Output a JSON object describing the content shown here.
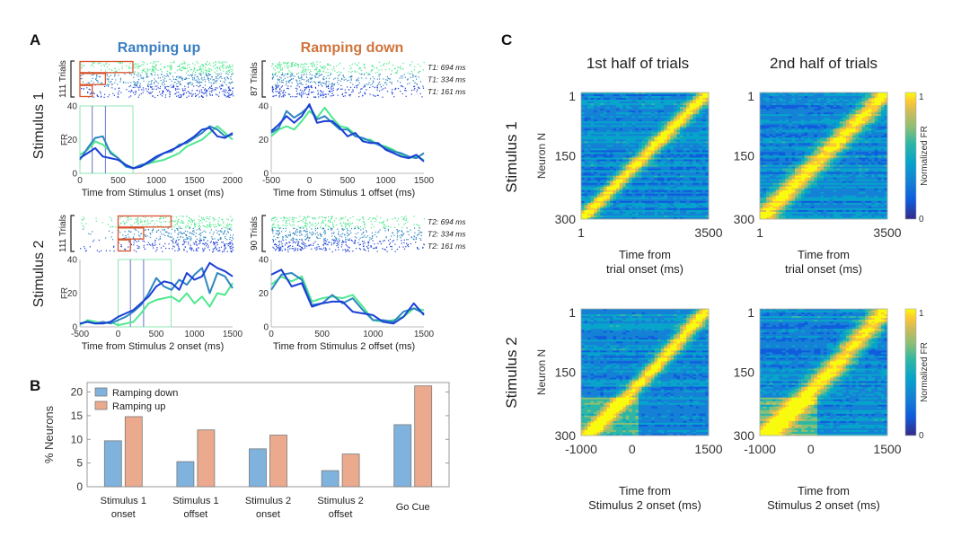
{
  "panels": {
    "A": {
      "letter": "A",
      "col_titles": [
        "Ramping up",
        "Ramping down"
      ],
      "col_title_colors": [
        "#3a7fc1",
        "#d0743c"
      ],
      "row_labels": [
        "Stimulus 1",
        "Stimulus 2"
      ],
      "fr_label": "FR",
      "series_colors": {
        "T694": "#4ee88f",
        "T334": "#2e86c1",
        "T161": "#1a3fd6"
      },
      "interval_box_color": "#d9522b",
      "subplots": [
        {
          "id": "s1-up",
          "trials_label": "111 Trials",
          "xlabel": "Time from  Stimulus 1 onset (ms)",
          "xlim": [
            0,
            2000
          ],
          "xticks": [
            0,
            500,
            1000,
            1500,
            2000
          ],
          "ylim": [
            0,
            40
          ],
          "yticks": [
            0,
            20,
            40
          ],
          "interval_markers": [
            161,
            334,
            694
          ],
          "boxes": true,
          "legend": []
        },
        {
          "id": "s1-down",
          "trials_label": "87 Trials",
          "xlabel": "Time from  Stimulus 1 offset (ms)",
          "xlim": [
            -500,
            1500
          ],
          "xticks": [
            -500,
            0,
            500,
            1000,
            1500
          ],
          "ylim": [
            0,
            40
          ],
          "yticks": [
            0,
            20,
            40
          ],
          "interval_markers": [],
          "boxes": false,
          "legend": [
            "T1: 694 ms",
            "T1: 334 ms",
            "T1: 161 ms"
          ]
        },
        {
          "id": "s2-up",
          "trials_label": "111 Trials",
          "xlabel": "Time from  Stimulus 2 onset (ms)",
          "xlim": [
            -500,
            1500
          ],
          "xticks": [
            -500,
            0,
            500,
            1000,
            1500
          ],
          "ylim": [
            0,
            40
          ],
          "yticks": [
            0,
            20,
            40
          ],
          "interval_markers": [
            161,
            334,
            694
          ],
          "boxes": true,
          "legend": []
        },
        {
          "id": "s2-down",
          "trials_label": "90 Trials",
          "xlabel": "Time from  Stimulus 2 offset (ms)",
          "xlim": [
            0,
            1500
          ],
          "xticks": [
            0,
            500,
            1000,
            1500
          ],
          "ylim": [
            0,
            40
          ],
          "yticks": [
            0,
            20,
            40
          ],
          "interval_markers": [],
          "boxes": false,
          "legend": [
            "T2: 694 ms",
            "T2: 334 ms",
            "T2: 161 ms"
          ]
        }
      ]
    },
    "B": {
      "letter": "B"
    },
    "C": {
      "letter": "C",
      "col_titles": [
        "1st half of trials",
        "2nd half of trials"
      ],
      "row_labels": [
        "Stimulus 1",
        "Stimulus 2"
      ],
      "ylabel": "Neuron N",
      "yticks": [
        "1",
        "150",
        "300"
      ],
      "colorbar_label": "Normalized FR",
      "colorbar_ticks": [
        "1",
        "0"
      ],
      "rows": [
        {
          "xticks": [
            "1",
            "3500"
          ],
          "xlabel_lines": [
            "Time from",
            "trial onset (ms)"
          ]
        },
        {
          "xticks": [
            "-1000",
            "0",
            "1500"
          ],
          "xlabel_lines": [
            "Time from",
            "Stimulus 2 onset (ms)"
          ]
        }
      ]
    }
  },
  "chart_data": [
    {
      "type": "line",
      "title": "A: Stimulus 1 – Ramping up (FR vs time from Stimulus 1 onset)",
      "xlabel": "Time from Stimulus 1 onset (ms)",
      "ylabel": "FR",
      "xlim": [
        0,
        2000
      ],
      "ylim": [
        0,
        40
      ],
      "x": [
        0,
        100,
        200,
        300,
        400,
        500,
        600,
        700,
        800,
        900,
        1000,
        1100,
        1200,
        1300,
        1400,
        1500,
        1600,
        1700,
        1800,
        1900,
        2000
      ],
      "series": [
        {
          "name": "T1: 694 ms",
          "values": [
            11,
            14,
            19,
            17,
            13,
            9,
            5,
            3,
            4,
            6,
            7,
            8,
            10,
            12,
            16,
            18,
            20,
            24,
            28,
            24,
            20
          ]
        },
        {
          "name": "T1: 334 ms",
          "values": [
            8,
            15,
            21,
            22,
            12,
            9,
            4,
            3,
            5,
            6,
            9,
            12,
            13,
            17,
            18,
            21,
            24,
            28,
            26,
            22,
            23
          ]
        },
        {
          "name": "T1: 161 ms",
          "values": [
            9,
            12,
            15,
            10,
            9,
            8,
            5,
            3,
            4,
            7,
            10,
            12,
            14,
            16,
            19,
            22,
            26,
            27,
            22,
            21,
            24
          ]
        }
      ]
    },
    {
      "type": "line",
      "title": "A: Stimulus 1 – Ramping down (FR vs time from Stimulus 1 offset)",
      "xlabel": "Time from Stimulus 1 offset (ms)",
      "ylabel": "FR",
      "xlim": [
        -500,
        1500
      ],
      "ylim": [
        0,
        40
      ],
      "x": [
        -500,
        -400,
        -300,
        -200,
        -100,
        0,
        100,
        200,
        300,
        400,
        500,
        600,
        700,
        800,
        900,
        1000,
        1100,
        1200,
        1300,
        1400,
        1500
      ],
      "series": [
        {
          "name": "T1: 694 ms",
          "values": [
            22,
            26,
            28,
            26,
            31,
            37,
            33,
            39,
            33,
            28,
            27,
            23,
            20,
            20,
            17,
            16,
            14,
            11,
            9,
            10,
            8
          ]
        },
        {
          "name": "T1: 334 ms",
          "values": [
            24,
            27,
            37,
            33,
            36,
            40,
            32,
            34,
            30,
            26,
            26,
            22,
            21,
            19,
            17,
            15,
            13,
            12,
            10,
            9,
            12
          ]
        },
        {
          "name": "T1: 161 ms",
          "values": [
            25,
            29,
            34,
            30,
            34,
            41,
            30,
            31,
            31,
            27,
            22,
            24,
            19,
            18,
            18,
            14,
            12,
            10,
            9,
            11,
            7
          ]
        }
      ]
    },
    {
      "type": "line",
      "title": "A: Stimulus 2 – Ramping up (FR vs time from Stimulus 2 onset)",
      "xlabel": "Time from Stimulus 2 onset (ms)",
      "ylabel": "FR",
      "xlim": [
        -500,
        1500
      ],
      "ylim": [
        0,
        40
      ],
      "x": [
        -500,
        -400,
        -300,
        -200,
        -100,
        0,
        100,
        200,
        300,
        400,
        500,
        600,
        700,
        800,
        900,
        1000,
        1100,
        1200,
        1300,
        1400,
        1500
      ],
      "series": [
        {
          "name": "T2: 694 ms",
          "values": [
            1,
            4,
            3,
            2,
            3,
            1,
            2,
            3,
            8,
            14,
            16,
            17,
            18,
            15,
            20,
            14,
            18,
            12,
            20,
            19,
            26
          ]
        },
        {
          "name": "T2: 334 ms",
          "values": [
            2,
            3,
            2,
            3,
            2,
            4,
            6,
            9,
            13,
            20,
            29,
            24,
            22,
            28,
            25,
            31,
            35,
            20,
            32,
            30,
            23
          ]
        },
        {
          "name": "T2: 161 ms",
          "values": [
            2,
            3,
            2,
            2,
            3,
            6,
            8,
            10,
            14,
            18,
            24,
            27,
            26,
            22,
            32,
            28,
            30,
            38,
            35,
            33,
            30
          ]
        }
      ]
    },
    {
      "type": "line",
      "title": "A: Stimulus 2 – Ramping down (FR vs time from Stimulus 2 offset)",
      "xlabel": "Time from Stimulus 2 offset (ms)",
      "ylabel": "FR",
      "xlim": [
        0,
        1500
      ],
      "ylim": [
        0,
        40
      ],
      "x": [
        0,
        100,
        200,
        300,
        400,
        500,
        600,
        700,
        800,
        900,
        1000,
        1100,
        1200,
        1300,
        1400,
        1500
      ],
      "series": [
        {
          "name": "T2: 694 ms",
          "values": [
            25,
            30,
            27,
            30,
            15,
            17,
            18,
            17,
            19,
            12,
            4,
            3,
            4,
            6,
            11,
            10
          ]
        },
        {
          "name": "T2: 334 ms",
          "values": [
            22,
            31,
            32,
            28,
            13,
            14,
            19,
            14,
            17,
            10,
            4,
            4,
            3,
            9,
            11,
            8
          ]
        },
        {
          "name": "T2: 161 ms",
          "values": [
            31,
            34,
            24,
            26,
            12,
            14,
            15,
            15,
            9,
            8,
            7,
            3,
            2,
            6,
            14,
            7
          ]
        }
      ]
    },
    {
      "type": "bar",
      "title": "B",
      "categories": [
        "Stimulus 1\nonset",
        "Stimulus 1\noffset",
        "Stimulus 2\nonset",
        "Stimulus 2\noffset",
        "Go Cue"
      ],
      "series": [
        {
          "name": "Ramping down",
          "color": "#7fb2dd",
          "values": [
            9.7,
            5.3,
            8.0,
            3.4,
            13.1
          ]
        },
        {
          "name": "Ramping up",
          "color": "#eba98d",
          "values": [
            14.8,
            12.0,
            10.9,
            6.9,
            21.3
          ]
        }
      ],
      "xlabel": "",
      "ylabel": "% Neurons",
      "ylim": [
        0,
        22
      ],
      "yticks": [
        0,
        5,
        10,
        15,
        20
      ],
      "legend": "top-left",
      "grid": false
    },
    {
      "type": "heatmap",
      "title": "C",
      "colormap": "parula",
      "color_range": [
        0,
        1
      ],
      "colorbar_label": "Normalized FR",
      "panels": [
        {
          "row": "Stimulus 1",
          "col": "1st half of trials",
          "ylabel": "Neuron N",
          "ylim": [
            1,
            300
          ],
          "xlim": [
            1,
            3500
          ],
          "xlabel": "Time from trial onset (ms)",
          "peak_ordering": "sequential, late at top (neuron 1) to early at bottom (neuron 300)"
        },
        {
          "row": "Stimulus 1",
          "col": "2nd half of trials",
          "ylabel": "",
          "ylim": [
            1,
            300
          ],
          "xlim": [
            1,
            3500
          ],
          "xlabel": "Time from trial onset (ms)",
          "peak_ordering": "same order as 1st half"
        },
        {
          "row": "Stimulus 2",
          "col": "1st half of trials",
          "ylabel": "Neuron N",
          "ylim": [
            1,
            300
          ],
          "xlim": [
            -1000,
            1500
          ],
          "xlabel": "Time from Stimulus 2 onset (ms)",
          "peak_ordering": "sequential, late at top to early at bottom"
        },
        {
          "row": "Stimulus 2",
          "col": "2nd half of trials",
          "ylabel": "",
          "ylim": [
            1,
            300
          ],
          "xlim": [
            -1000,
            1500
          ],
          "xlabel": "Time from Stimulus 2 onset (ms)",
          "peak_ordering": "same order as 1st half"
        }
      ]
    }
  ]
}
